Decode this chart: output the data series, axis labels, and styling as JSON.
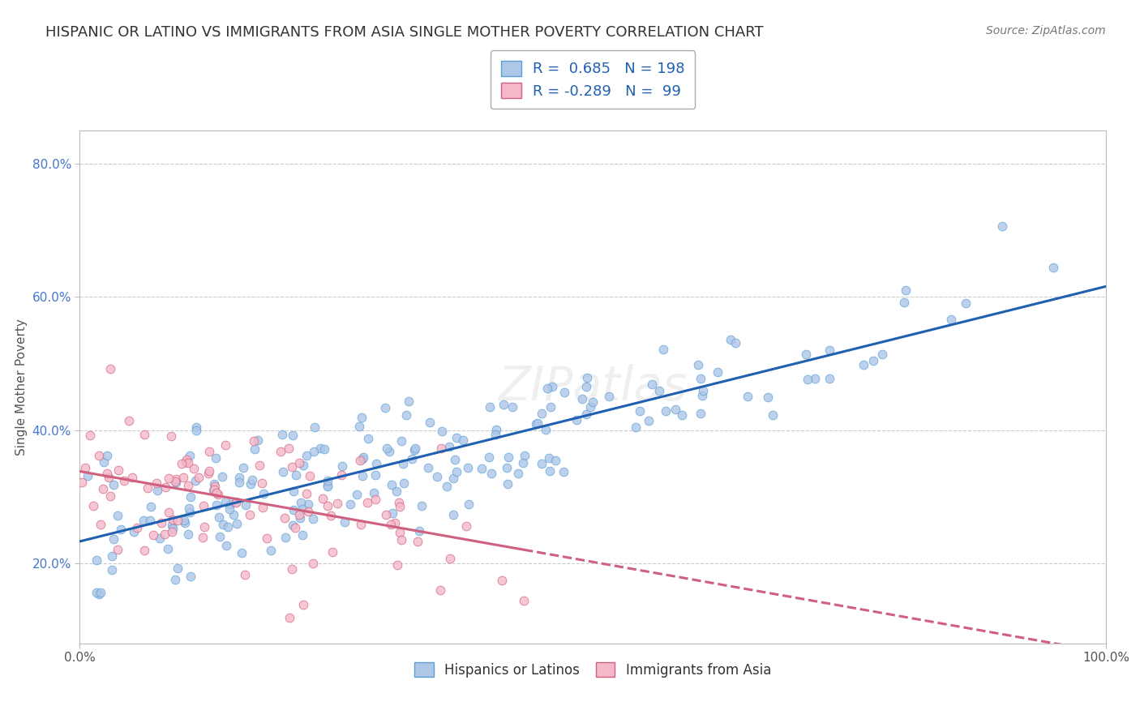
{
  "title": "HISPANIC OR LATINO VS IMMIGRANTS FROM ASIA SINGLE MOTHER POVERTY CORRELATION CHART",
  "source": "Source: ZipAtlas.com",
  "ylabel": "Single Mother Poverty",
  "x_min": 0.0,
  "x_max": 1.0,
  "y_min": 0.08,
  "y_max": 0.85,
  "x_tick_labels": [
    "0.0%",
    "100.0%"
  ],
  "y_tick_labels": [
    "20.0%",
    "40.0%",
    "60.0%",
    "80.0%"
  ],
  "y_tick_values": [
    0.2,
    0.4,
    0.6,
    0.8
  ],
  "series1_label": "Hispanics or Latinos",
  "series1_color": "#aec6e8",
  "series1_edge_color": "#5a9fd4",
  "series1_R": "0.685",
  "series1_N": "198",
  "series1_trend_color": "#2060b0",
  "series2_label": "Immigrants from Asia",
  "series2_color": "#f4b8c8",
  "series2_edge_color": "#d06080",
  "series2_R": "-0.289",
  "series2_N": "99",
  "series2_trend_color": "#d06080",
  "legend_color": "#2060b0",
  "title_fontsize": 13,
  "axis_label_fontsize": 11,
  "tick_fontsize": 11,
  "background_color": "#ffffff",
  "grid_color": "#cccccc",
  "seed": 42
}
